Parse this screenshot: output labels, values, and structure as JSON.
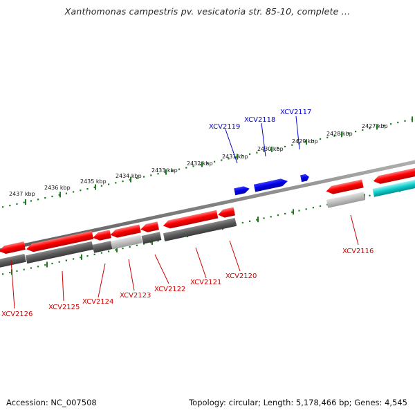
{
  "title": "Xanthomonas campestris pv. vesicatoria str. 85-10, complete ...",
  "footer": {
    "accession": "Accession: NC_007508",
    "summary": "Topology: circular; Length: 5,178,466 bp; Genes: 4,545"
  },
  "colors": {
    "backbone": "#808080",
    "tick": "#1e7a1e",
    "gene_forward": "#0000e6",
    "gene_reverse": "#ee0000",
    "gene_other": "#00c8c8",
    "locus_forward_label": "#0000cc",
    "locus_reverse_label": "#cc0000",
    "feature_dark": "#5a5a5a",
    "feature_light": "#b8b8b8"
  },
  "upper_scale_labels": [
    "2437 kbp",
    "2436 kbp",
    "2435 kbp",
    "2434 kbp",
    "2433 kbp",
    "2432 kbp",
    "2431 kbp",
    "2430 kbp",
    "2429 kbp",
    "2428 kbp",
    "2427 kbp"
  ],
  "forward_labels": [
    "XCV2119",
    "XCV2118",
    "XCV2117"
  ],
  "reverse_labels": [
    "XCV2126",
    "XCV2125",
    "XCV2124",
    "XCV2123",
    "XCV2122",
    "XCV2121",
    "XCV2120",
    "XCV2116"
  ]
}
